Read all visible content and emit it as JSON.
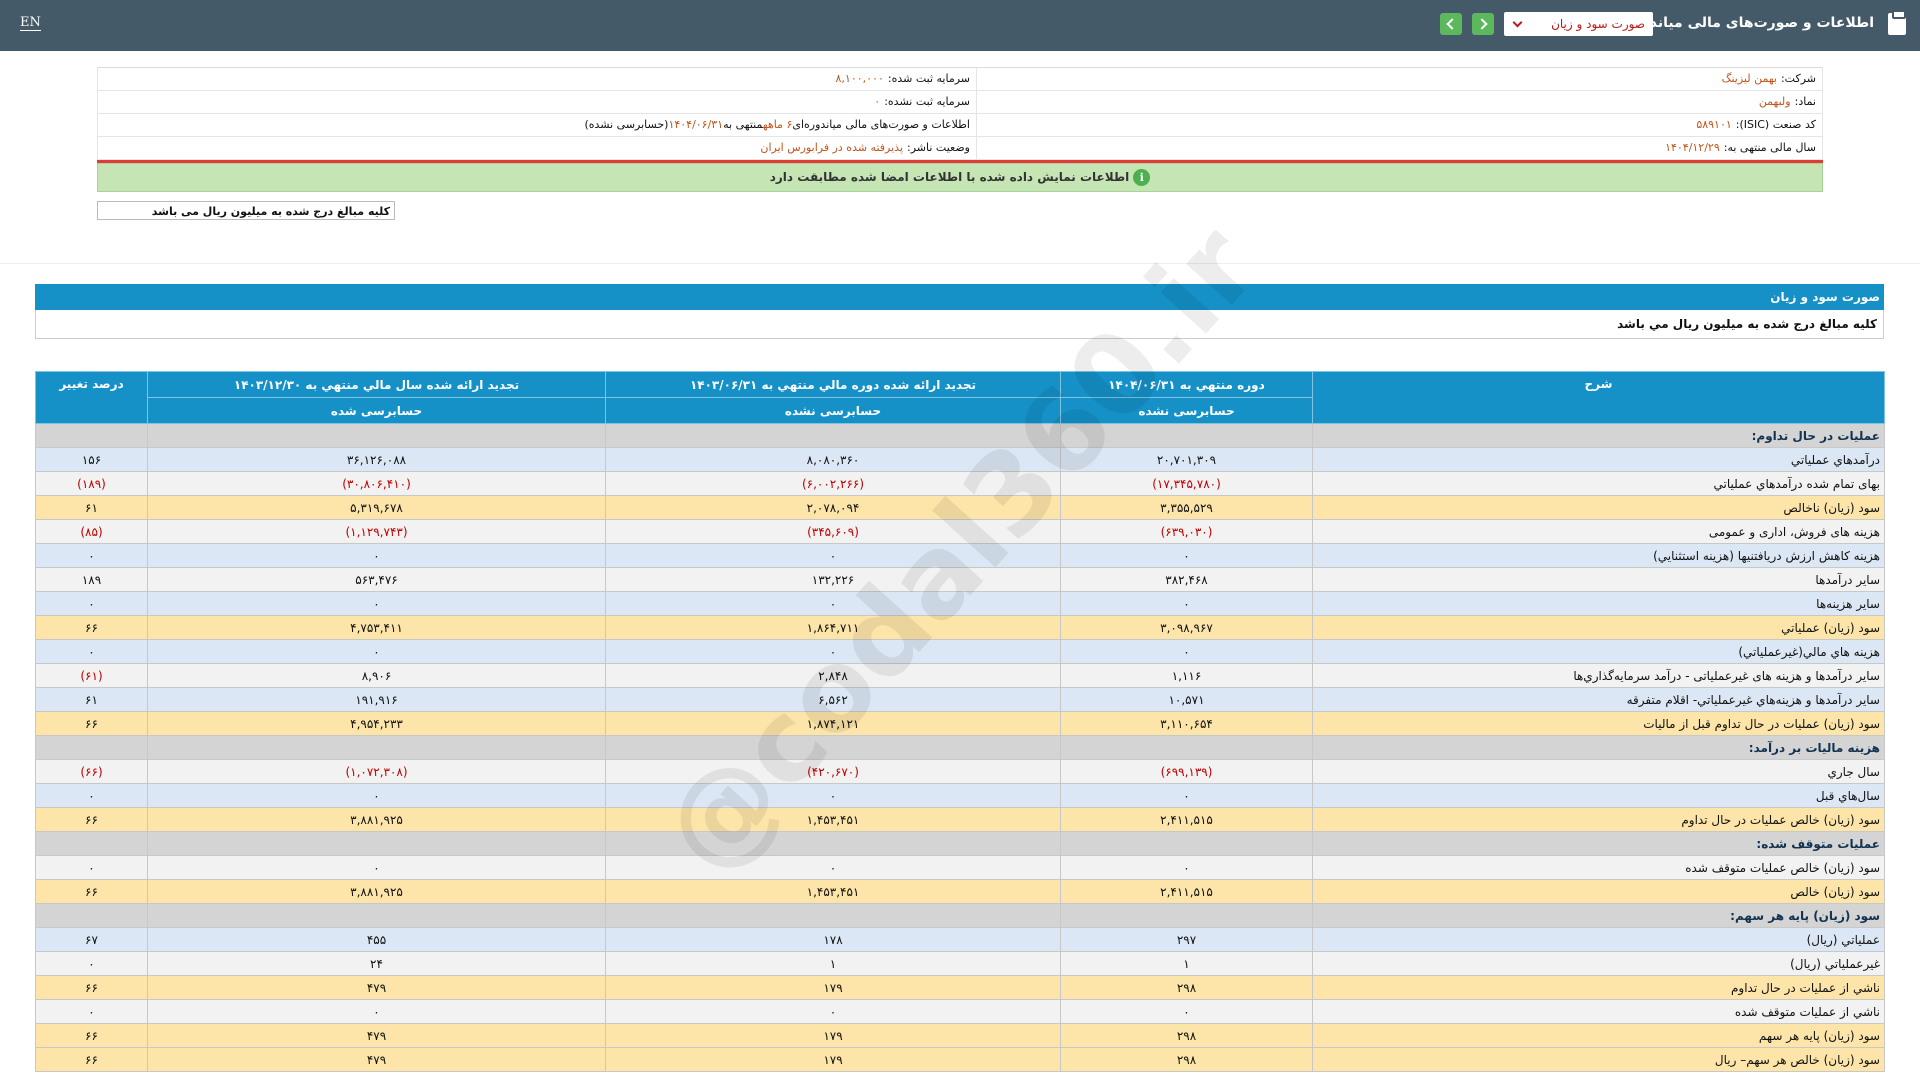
{
  "header": {
    "title": "اطلاعات و صورت‌های مالی میاندوره‌ای",
    "statement_select": "صورت سود و زیان",
    "language": "EN"
  },
  "company_info": {
    "right": [
      {
        "label": "شرکت:",
        "value": "بهمن لیزینگ"
      },
      {
        "label": "نماد:",
        "value": "ولبهمن"
      },
      {
        "label": "کد صنعت (ISIC):",
        "value": "۵۸۹۱۰۱"
      },
      {
        "label": "سال مالی منتهی به:",
        "value": "۱۴۰۴/۱۲/۲۹"
      }
    ],
    "left": [
      {
        "label": "سرمایه ثبت شده:",
        "value": "۸,۱۰۰,۰۰۰"
      },
      {
        "label": "سرمایه ثبت نشده:",
        "value": "۰"
      },
      {
        "label": "اطلاعات و صورت‌های مالی میاندوره‌ای",
        "value": "۶ ماهه",
        "label2": "منتهی به",
        "value2": "۱۴۰۴/۰۶/۳۱",
        "label3": "(حسابرسی نشده)"
      },
      {
        "label": "وضعیت ناشر:",
        "value": "پذیرفته شده در فرابورس ایران"
      }
    ],
    "match_notice": "اطلاعات نمایش داده شده با اطلاعات امضا شده مطابقت دارد",
    "unit_note": "کلیه مبالغ درج شده به میلیون ریال می باشد"
  },
  "statement": {
    "title": "صورت سود و زیان",
    "unit_note": "كليه مبالغ درج شده به ميليون ريال مي باشد",
    "watermark": "@codal360.ir",
    "columns": [
      {
        "title": "شرح"
      },
      {
        "title": "دوره منتهي به ۱۴۰۴/۰۶/۳۱",
        "subtitle": "حسابرسی نشده"
      },
      {
        "title": "تجديد ارائه شده دوره مالي منتهي به ۱۴۰۳/۰۶/۳۱",
        "subtitle": "حسابرسی نشده"
      },
      {
        "title": "تجديد ارائه شده سال مالي منتهي به ۱۴۰۳/۱۲/۳۰",
        "subtitle": "حسابرسی شده"
      },
      {
        "title": "درصد تغيير"
      }
    ],
    "rows": [
      {
        "label": "عمليات در حال تداوم:"
      },
      {
        "label": "درآمدهاي عملياتي",
        "values": [
          "۲۰,۷۰۱,۳۰۹",
          "۸,۰۸۰,۳۶۰",
          "۳۶,۱۲۶,۰۸۸",
          "۱۵۶"
        ]
      },
      {
        "label": "بهاى تمام شده درآمدهاي عملياتي",
        "values": [
          "(۱۷,۳۴۵,۷۸۰)",
          "(۶,۰۰۲,۲۶۶)",
          "(۳۰,۸۰۶,۴۱۰)",
          "(۱۸۹)"
        ]
      },
      {
        "label": "سود (زيان) ناخالص",
        "values": [
          "۳,۳۵۵,۵۲۹",
          "۲,۰۷۸,۰۹۴",
          "۵,۳۱۹,۶۷۸",
          "۶۱"
        ],
        "highlight": true
      },
      {
        "label": "هزينه هاى فروش، ادارى و عمومى",
        "values": [
          "(۶۳۹,۰۳۰)",
          "(۳۴۵,۶۰۹)",
          "(۱,۱۲۹,۷۴۳)",
          "(۸۵)"
        ]
      },
      {
        "label": "هزينه کاهش ارزش دريافتنيها (هزينه استثنايي)",
        "values": [
          "۰",
          "۰",
          "۰",
          "۰"
        ]
      },
      {
        "label": "ساير درآمدها",
        "values": [
          "۳۸۲,۴۶۸",
          "۱۳۲,۲۲۶",
          "۵۶۳,۴۷۶",
          "۱۸۹"
        ]
      },
      {
        "label": "ساير هزينه‌ها",
        "values": [
          "۰",
          "۰",
          "۰",
          "۰"
        ]
      },
      {
        "label": "سود (زيان) عملياتي",
        "values": [
          "۳,۰۹۸,۹۶۷",
          "۱,۸۶۴,۷۱۱",
          "۴,۷۵۳,۴۱۱",
          "۶۶"
        ],
        "highlight": true
      },
      {
        "label": "هزينه هاي مالي(غيرعملياتي)",
        "values": [
          "۰",
          "۰",
          "۰",
          "۰"
        ]
      },
      {
        "label": "ساير درآمدها و هزينه هاى غيرعملياتى - درآمد سرمايه‌گذاري‌ها",
        "values": [
          "۱,۱۱۶",
          "۲,۸۴۸",
          "۸,۹۰۶",
          "(۶۱)"
        ]
      },
      {
        "label": "ساير درآمدها و هزينه‌هاي غيرعملياتي- اقلام متفرقه",
        "values": [
          "۱۰,۵۷۱",
          "۶,۵۶۲",
          "۱۹۱,۹۱۶",
          "۶۱"
        ]
      },
      {
        "label": "سود (زيان) عمليات در حال تداوم قبل از ماليات",
        "values": [
          "۳,۱۱۰,۶۵۴",
          "۱,۸۷۴,۱۲۱",
          "۴,۹۵۴,۲۳۳",
          "۶۶"
        ],
        "highlight": true
      },
      {
        "label": "هزينه ماليات بر درآمد:"
      },
      {
        "label": "سال جاري",
        "values": [
          "(۶۹۹,۱۳۹)",
          "(۴۲۰,۶۷۰)",
          "(۱,۰۷۲,۳۰۸)",
          "(۶۶)"
        ]
      },
      {
        "label": "سال‌هاي قبل",
        "values": [
          "۰",
          "۰",
          "۰",
          "۰"
        ]
      },
      {
        "label": "سود (زيان) خالص عمليات در حال تداوم",
        "values": [
          "۲,۴۱۱,۵۱۵",
          "۱,۴۵۳,۴۵۱",
          "۳,۸۸۱,۹۲۵",
          "۶۶"
        ],
        "highlight": true
      },
      {
        "label": "عمليات متوقف شده:"
      },
      {
        "label": "سود (زيان) خالص عمليات متوقف شده",
        "values": [
          "۰",
          "۰",
          "۰",
          "۰"
        ]
      },
      {
        "label": "سود (زيان) خالص",
        "values": [
          "۲,۴۱۱,۵۱۵",
          "۱,۴۵۳,۴۵۱",
          "۳,۸۸۱,۹۲۵",
          "۶۶"
        ],
        "highlight": true
      },
      {
        "label": "سود (زيان) پايه هر سهم:"
      },
      {
        "label": "عملياتي (ريال)",
        "values": [
          "۲۹۷",
          "۱۷۸",
          "۴۵۵",
          "۶۷"
        ]
      },
      {
        "label": "غيرعملياتي (ريال)",
        "values": [
          "۱",
          "۱",
          "۲۴",
          "۰"
        ]
      },
      {
        "label": "ناشي از عمليات در حال تداوم",
        "values": [
          "۲۹۸",
          "۱۷۹",
          "۴۷۹",
          "۶۶"
        ],
        "highlight": true
      },
      {
        "label": "ناشي از عمليات متوقف شده",
        "values": [
          "۰",
          "۰",
          "۰",
          "۰"
        ]
      },
      {
        "label": "سود (زيان) پايه هر سهم",
        "values": [
          "۲۹۸",
          "۱۷۹",
          "۴۷۹",
          "۶۶"
        ],
        "highlight": true
      },
      {
        "label": "سود (زيان) خالص هر سهم– ريال",
        "values": [
          "۲۹۸",
          "۱۷۹",
          "۴۷۹",
          "۶۶"
        ],
        "highlight": true
      }
    ]
  }
}
